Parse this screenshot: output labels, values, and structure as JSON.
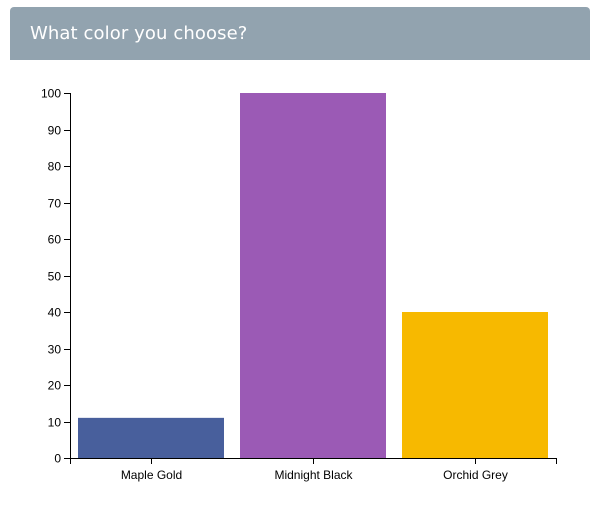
{
  "header": {
    "title": "What color you choose?",
    "background_color": "#92a3af",
    "title_color": "#ffffff"
  },
  "chart_data": {
    "type": "bar",
    "categories": [
      "Maple Gold",
      "Midnight Black",
      "Orchid Grey"
    ],
    "values": [
      11,
      100,
      40
    ],
    "colors": [
      "#485f9c",
      "#9b5ab5",
      "#f7b900"
    ],
    "ylim": [
      0,
      100
    ],
    "yticks": [
      0,
      10,
      20,
      30,
      40,
      50,
      60,
      70,
      80,
      90,
      100
    ],
    "title": "",
    "xlabel": "",
    "ylabel": "",
    "grid": false,
    "legend": "none"
  }
}
